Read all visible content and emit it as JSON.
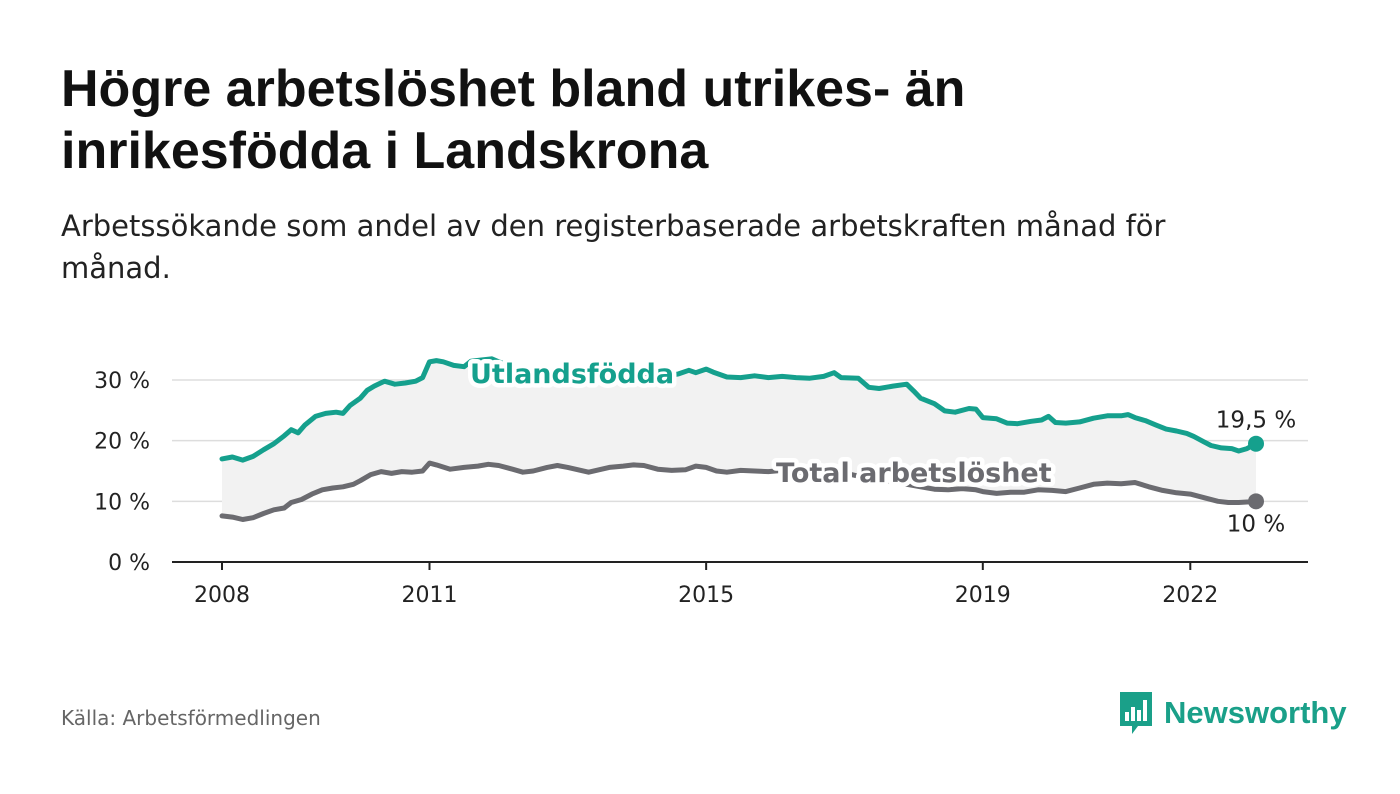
{
  "header": {
    "title": "Högre arbetslöshet bland utrikes- än inrikesfödda i Landskrona",
    "subtitle": "Arbetssökande som andel av den registerbaserade arbetskraften månad för månad."
  },
  "footer": {
    "source": "Källa: Arbetsförmedlingen",
    "brand": "Newsworthy"
  },
  "colors": {
    "foreign": "#15a08d",
    "total": "#6b6b70",
    "band": "#f2f2f2",
    "grid": "#dddddd",
    "brand": "#1aa089"
  },
  "icons": {
    "brand": "bar-chart-logo-icon"
  },
  "chart_data": {
    "type": "line",
    "title": "Högre arbetslöshet bland utrikes- än inrikesfödda i Landskrona",
    "xlabel": "",
    "ylabel": "",
    "xlim": [
      2008.0,
      2022.95
    ],
    "ylim": [
      0,
      30
    ],
    "yticks": [
      0,
      10,
      20,
      30
    ],
    "ytick_labels": [
      "0 %",
      "10 %",
      "20 %",
      "30 %"
    ],
    "xticks": [
      2008,
      2011,
      2015,
      2019,
      2022
    ],
    "xtick_labels": [
      "2008",
      "2011",
      "2015",
      "2019",
      "2022"
    ],
    "grid": true,
    "series": [
      {
        "name": "Utlandsfödda",
        "points": [
          [
            2008.0,
            17.0
          ],
          [
            2008.15,
            17.3
          ],
          [
            2008.3,
            16.8
          ],
          [
            2008.45,
            17.4
          ],
          [
            2008.6,
            18.5
          ],
          [
            2008.75,
            19.5
          ],
          [
            2008.9,
            20.8
          ],
          [
            2009.0,
            21.8
          ],
          [
            2009.1,
            21.3
          ],
          [
            2009.2,
            22.6
          ],
          [
            2009.35,
            24.0
          ],
          [
            2009.5,
            24.5
          ],
          [
            2009.65,
            24.7
          ],
          [
            2009.75,
            24.5
          ],
          [
            2009.85,
            25.8
          ],
          [
            2010.0,
            27.0
          ],
          [
            2010.1,
            28.3
          ],
          [
            2010.2,
            29.0
          ],
          [
            2010.35,
            29.8
          ],
          [
            2010.5,
            29.3
          ],
          [
            2010.65,
            29.5
          ],
          [
            2010.8,
            29.8
          ],
          [
            2010.9,
            30.4
          ],
          [
            2011.0,
            33.0
          ],
          [
            2011.1,
            33.2
          ],
          [
            2011.2,
            33.0
          ],
          [
            2011.35,
            32.4
          ],
          [
            2011.5,
            32.2
          ],
          [
            2011.6,
            33.1
          ],
          [
            2011.75,
            33.3
          ],
          [
            2011.9,
            33.5
          ],
          [
            2012.0,
            33.0
          ],
          [
            2012.2,
            32.2
          ],
          [
            2012.4,
            31.2
          ],
          [
            2012.6,
            30.8
          ],
          [
            2012.8,
            30.2
          ],
          [
            2013.0,
            29.4
          ],
          [
            2013.1,
            29.3
          ],
          [
            2013.25,
            29.9
          ],
          [
            2013.4,
            30.4
          ],
          [
            2013.6,
            30.2
          ],
          [
            2013.8,
            30.0
          ],
          [
            2014.0,
            30.5
          ],
          [
            2014.2,
            30.3
          ],
          [
            2014.4,
            30.6
          ],
          [
            2014.6,
            31.0
          ],
          [
            2014.75,
            31.6
          ],
          [
            2014.85,
            31.2
          ],
          [
            2015.0,
            31.8
          ],
          [
            2015.1,
            31.3
          ],
          [
            2015.3,
            30.5
          ],
          [
            2015.5,
            30.4
          ],
          [
            2015.7,
            30.7
          ],
          [
            2015.9,
            30.4
          ],
          [
            2016.1,
            30.6
          ],
          [
            2016.3,
            30.4
          ],
          [
            2016.5,
            30.3
          ],
          [
            2016.7,
            30.6
          ],
          [
            2016.85,
            31.2
          ],
          [
            2016.95,
            30.4
          ],
          [
            2017.2,
            30.3
          ],
          [
            2017.35,
            28.8
          ],
          [
            2017.5,
            28.6
          ],
          [
            2017.7,
            29.0
          ],
          [
            2017.9,
            29.3
          ],
          [
            2018.0,
            28.2
          ],
          [
            2018.1,
            27.0
          ],
          [
            2018.3,
            26.1
          ],
          [
            2018.45,
            24.9
          ],
          [
            2018.6,
            24.7
          ],
          [
            2018.8,
            25.3
          ],
          [
            2018.9,
            25.2
          ],
          [
            2019.0,
            23.8
          ],
          [
            2019.2,
            23.6
          ],
          [
            2019.35,
            22.9
          ],
          [
            2019.5,
            22.8
          ],
          [
            2019.7,
            23.2
          ],
          [
            2019.85,
            23.4
          ],
          [
            2019.95,
            24.0
          ],
          [
            2020.05,
            23.0
          ],
          [
            2020.2,
            22.9
          ],
          [
            2020.4,
            23.1
          ],
          [
            2020.6,
            23.7
          ],
          [
            2020.8,
            24.1
          ],
          [
            2021.0,
            24.1
          ],
          [
            2021.1,
            24.3
          ],
          [
            2021.2,
            23.8
          ],
          [
            2021.35,
            23.3
          ],
          [
            2021.5,
            22.6
          ],
          [
            2021.65,
            21.9
          ],
          [
            2021.8,
            21.6
          ],
          [
            2021.95,
            21.2
          ],
          [
            2022.05,
            20.7
          ],
          [
            2022.2,
            19.8
          ],
          [
            2022.3,
            19.2
          ],
          [
            2022.45,
            18.8
          ],
          [
            2022.6,
            18.7
          ],
          [
            2022.7,
            18.3
          ],
          [
            2022.82,
            18.7
          ],
          [
            2022.95,
            19.5
          ]
        ],
        "label": "Utlandsfödda",
        "end_label": "19,5 %"
      },
      {
        "name": "Total arbetslöshet",
        "points": [
          [
            2008.0,
            7.6
          ],
          [
            2008.15,
            7.4
          ],
          [
            2008.3,
            7.0
          ],
          [
            2008.45,
            7.3
          ],
          [
            2008.6,
            8.0
          ],
          [
            2008.75,
            8.6
          ],
          [
            2008.9,
            8.9
          ],
          [
            2009.0,
            9.8
          ],
          [
            2009.15,
            10.3
          ],
          [
            2009.3,
            11.2
          ],
          [
            2009.45,
            11.9
          ],
          [
            2009.6,
            12.2
          ],
          [
            2009.75,
            12.4
          ],
          [
            2009.9,
            12.8
          ],
          [
            2010.0,
            13.4
          ],
          [
            2010.15,
            14.4
          ],
          [
            2010.3,
            14.9
          ],
          [
            2010.45,
            14.6
          ],
          [
            2010.6,
            14.9
          ],
          [
            2010.75,
            14.8
          ],
          [
            2010.9,
            15.0
          ],
          [
            2011.0,
            16.3
          ],
          [
            2011.1,
            16.0
          ],
          [
            2011.3,
            15.3
          ],
          [
            2011.5,
            15.6
          ],
          [
            2011.7,
            15.8
          ],
          [
            2011.85,
            16.1
          ],
          [
            2012.0,
            15.9
          ],
          [
            2012.2,
            15.3
          ],
          [
            2012.35,
            14.8
          ],
          [
            2012.5,
            15.0
          ],
          [
            2012.7,
            15.6
          ],
          [
            2012.85,
            15.9
          ],
          [
            2013.0,
            15.6
          ],
          [
            2013.15,
            15.2
          ],
          [
            2013.3,
            14.8
          ],
          [
            2013.45,
            15.2
          ],
          [
            2013.6,
            15.6
          ],
          [
            2013.8,
            15.8
          ],
          [
            2013.95,
            16.0
          ],
          [
            2014.1,
            15.9
          ],
          [
            2014.3,
            15.3
          ],
          [
            2014.5,
            15.1
          ],
          [
            2014.7,
            15.2
          ],
          [
            2014.85,
            15.8
          ],
          [
            2015.0,
            15.6
          ],
          [
            2015.15,
            15.0
          ],
          [
            2015.3,
            14.8
          ],
          [
            2015.5,
            15.1
          ],
          [
            2015.7,
            15.0
          ],
          [
            2015.9,
            14.9
          ],
          [
            2016.1,
            15.1
          ],
          [
            2016.3,
            14.8
          ],
          [
            2016.5,
            14.7
          ],
          [
            2016.7,
            14.6
          ],
          [
            2016.9,
            14.7
          ],
          [
            2017.1,
            14.4
          ],
          [
            2017.3,
            13.9
          ],
          [
            2017.5,
            13.5
          ],
          [
            2017.7,
            13.2
          ],
          [
            2017.9,
            12.8
          ],
          [
            2018.1,
            12.4
          ],
          [
            2018.3,
            12.0
          ],
          [
            2018.5,
            11.9
          ],
          [
            2018.7,
            12.1
          ],
          [
            2018.9,
            11.9
          ],
          [
            2019.0,
            11.6
          ],
          [
            2019.2,
            11.3
          ],
          [
            2019.4,
            11.5
          ],
          [
            2019.6,
            11.5
          ],
          [
            2019.8,
            11.9
          ],
          [
            2020.0,
            11.8
          ],
          [
            2020.2,
            11.6
          ],
          [
            2020.4,
            12.2
          ],
          [
            2020.6,
            12.8
          ],
          [
            2020.8,
            13.0
          ],
          [
            2021.0,
            12.9
          ],
          [
            2021.2,
            13.1
          ],
          [
            2021.4,
            12.4
          ],
          [
            2021.6,
            11.8
          ],
          [
            2021.8,
            11.4
          ],
          [
            2022.0,
            11.2
          ],
          [
            2022.2,
            10.6
          ],
          [
            2022.4,
            10.0
          ],
          [
            2022.55,
            9.8
          ],
          [
            2022.7,
            9.8
          ],
          [
            2022.85,
            9.9
          ],
          [
            2022.95,
            10.0
          ]
        ],
        "label": "Total arbetslöshet",
        "end_label": "10 %"
      }
    ]
  }
}
